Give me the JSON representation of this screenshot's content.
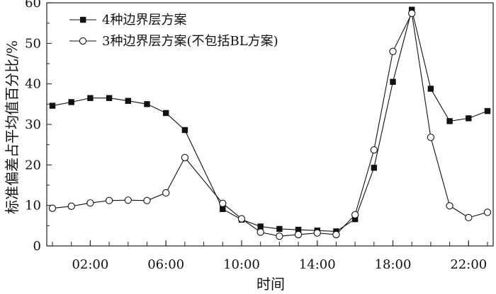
{
  "chart_data": {
    "type": "line",
    "xlabel": "时间",
    "ylabel": "标准偏差占平均值百分比/%",
    "xlim": [
      -0.3,
      23.3
    ],
    "ylim": [
      0,
      60
    ],
    "x_ticks": [
      2,
      6,
      10,
      14,
      18,
      22
    ],
    "x_tick_labels": [
      "02:00",
      "06:00",
      "10:00",
      "14:00",
      "18:00",
      "22:00"
    ],
    "y_ticks": [
      0,
      10,
      20,
      30,
      40,
      50,
      60
    ],
    "y_tick_labels": [
      "0",
      "10",
      "20",
      "30",
      "40",
      "50",
      "60"
    ],
    "grid": false,
    "legend_position": "top-left",
    "series": [
      {
        "name": "4种边界层方案",
        "marker": "filled-square",
        "color": "#111111",
        "x": [
          0,
          1,
          2,
          3,
          4,
          5,
          6,
          7,
          9,
          10,
          11,
          12,
          13,
          14,
          15,
          16,
          17,
          18,
          19,
          20,
          21,
          22,
          23
        ],
        "values": [
          34.6,
          35.5,
          36.5,
          36.5,
          35.8,
          35.0,
          32.8,
          28.6,
          9.1,
          6.5,
          4.8,
          4.2,
          4.0,
          3.8,
          3.6,
          6.6,
          19.3,
          40.5,
          58.3,
          38.8,
          30.8,
          31.5,
          33.3
        ]
      },
      {
        "name": "3种边界层方案(不包括BL方案)",
        "marker": "open-circle",
        "color": "#111111",
        "x": [
          0,
          1,
          2,
          3,
          4,
          5,
          6,
          7,
          9,
          10,
          11,
          12,
          13,
          14,
          15,
          16,
          17,
          18,
          19,
          20,
          21,
          22,
          23
        ],
        "values": [
          9.3,
          9.8,
          10.6,
          11.2,
          11.3,
          11.2,
          13.1,
          21.8,
          10.5,
          6.7,
          3.4,
          2.4,
          2.8,
          3.2,
          2.8,
          7.7,
          23.7,
          48.0,
          57.4,
          26.8,
          9.9,
          7.0,
          8.3
        ]
      }
    ]
  }
}
